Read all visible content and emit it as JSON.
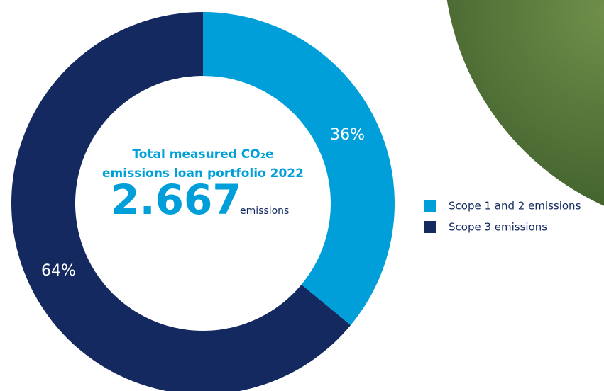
{
  "chart_data": {
    "type": "donut",
    "title": "Total measured CO₂e emissions loan portfolio 2022",
    "total": "2.667",
    "total_unit": "emissions",
    "series": [
      {
        "name": "Scope 1 and 2 emissions",
        "color": "#009fda",
        "values": [
          36
        ],
        "value_labels": [
          "36%"
        ]
      },
      {
        "name": "Scope 3 emissions",
        "color": "#13295f",
        "values": [
          64
        ],
        "value_labels": [
          "64%"
        ]
      }
    ],
    "legend": "right"
  }
}
